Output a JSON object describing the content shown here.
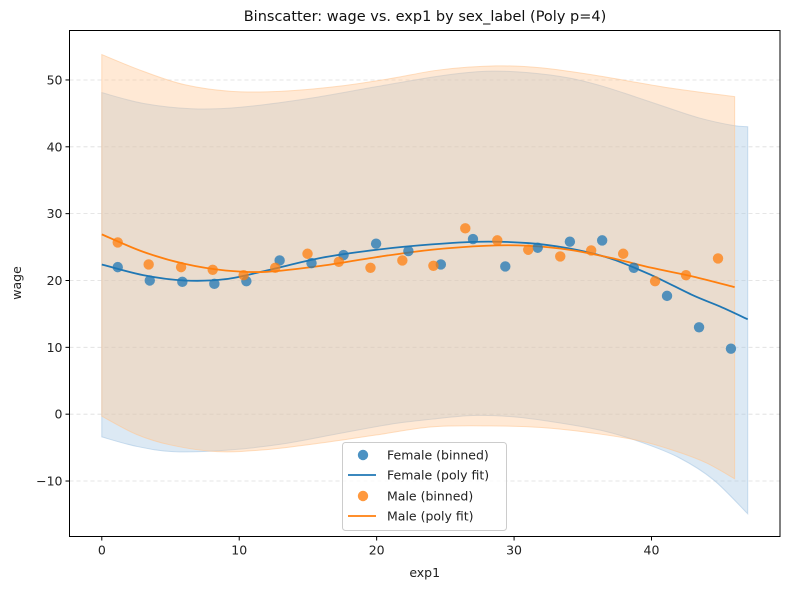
{
  "chart_data": {
    "type": "scatter",
    "title": "Binscatter: wage vs. exp1 by sex_label (Poly p=4)",
    "xlabel": "exp1",
    "ylabel": "wage",
    "xlim": [
      -2.35,
      49.35
    ],
    "ylim": [
      -18.3,
      57.4
    ],
    "xticks": [
      0,
      10,
      20,
      30,
      40
    ],
    "yticks": [
      -10,
      0,
      10,
      20,
      30,
      40,
      50
    ],
    "xtick_labels": [
      "0",
      "10",
      "20",
      "30",
      "40"
    ],
    "ytick_labels": [
      "−10",
      "0",
      "10",
      "20",
      "30",
      "40",
      "50"
    ],
    "grid": "y-dashed",
    "legend_position": "bottom-center",
    "legend": [
      {
        "label": "Female (binned)",
        "kind": "marker",
        "series": "Female"
      },
      {
        "label": "Female (poly fit)",
        "kind": "line",
        "series": "Female"
      },
      {
        "label": "Male (binned)",
        "kind": "marker",
        "series": "Male"
      },
      {
        "label": "Male (poly fit)",
        "kind": "line",
        "series": "Male"
      }
    ],
    "series": [
      {
        "name": "Female",
        "color": "#1f77b4",
        "band_color": "#a8c8e4",
        "binned": {
          "x": [
            1.16,
            3.49,
            5.86,
            8.19,
            10.52,
            12.94,
            15.26,
            17.59,
            19.96,
            22.31,
            24.67,
            27.01,
            29.36,
            31.72,
            34.06,
            36.41,
            38.71,
            41.13,
            43.46,
            45.78
          ],
          "y": [
            22.0,
            20.0,
            19.8,
            19.5,
            19.9,
            23.0,
            22.6,
            23.8,
            25.5,
            24.4,
            22.4,
            26.2,
            22.1,
            24.9,
            25.8,
            26.0,
            21.9,
            17.7,
            13.0,
            9.8
          ]
        },
        "fit": {
          "x": [
            0,
            3,
            6,
            9,
            12,
            16,
            20,
            24,
            27.5,
            31,
            34,
            37,
            40,
            43,
            45,
            47
          ],
          "y": [
            22.4,
            20.8,
            20.0,
            20.2,
            21.5,
            23.4,
            24.6,
            25.4,
            25.8,
            25.6,
            24.8,
            23.3,
            20.8,
            17.8,
            16.1,
            14.2
          ]
        },
        "ci_upper": {
          "x": [
            0,
            3,
            6.5,
            10,
            15,
            20,
            24.6,
            28,
            31,
            34,
            36.2,
            38.5,
            41.1,
            43.5,
            45.9,
            47
          ],
          "y": [
            48.1,
            46.5,
            45.7,
            45.9,
            47.2,
            49.0,
            50.6,
            51.3,
            51.1,
            50.3,
            49.2,
            47.7,
            45.9,
            44.3,
            43.2,
            43.0
          ]
        },
        "ci_lower": {
          "x": [
            0,
            2.5,
            5.2,
            9,
            13,
            17,
            21,
            24,
            27,
            30,
            33,
            36.5,
            39.4,
            42,
            44.5,
            47
          ],
          "y": [
            -3.4,
            -4.8,
            -5.6,
            -5.4,
            -4.5,
            -3.0,
            -1.5,
            -0.75,
            -0.2,
            -0.4,
            -1.2,
            -2.5,
            -4.3,
            -6.5,
            -9.8,
            -14.9
          ]
        }
      },
      {
        "name": "Male",
        "color": "#ff7f0e",
        "band_color": "#ffc896",
        "binned": {
          "x": [
            1.16,
            3.41,
            5.77,
            8.07,
            10.32,
            12.62,
            14.97,
            17.25,
            19.55,
            21.87,
            24.13,
            26.45,
            28.78,
            31.03,
            33.36,
            35.61,
            37.94,
            40.26,
            42.51,
            44.84
          ],
          "y": [
            25.7,
            22.4,
            22.0,
            21.6,
            20.8,
            21.9,
            24.0,
            22.8,
            21.9,
            23.0,
            22.2,
            27.8,
            26.0,
            24.6,
            23.6,
            24.5,
            24.0,
            19.9,
            20.8,
            23.3
          ]
        },
        "fit": {
          "x": [
            0,
            3,
            6,
            9,
            12,
            16,
            20,
            24,
            28,
            31,
            34,
            37,
            40,
            43,
            46.05
          ],
          "y": [
            26.9,
            24.3,
            22.5,
            21.5,
            21.3,
            22.2,
            23.5,
            24.6,
            25.2,
            25.2,
            24.6,
            23.4,
            21.9,
            20.6,
            19.0
          ]
        },
        "ci_upper": {
          "x": [
            0,
            3,
            6,
            9.4,
            13,
            17,
            21,
            24.6,
            28.7,
            32,
            36.2,
            41,
            46.05
          ],
          "y": [
            53.8,
            51.3,
            49.3,
            48.3,
            48.3,
            49.0,
            50.2,
            51.5,
            52.1,
            51.8,
            50.6,
            48.9,
            47.5
          ]
        },
        "ci_lower": {
          "x": [
            0,
            2.5,
            5,
            8.4,
            12,
            16,
            20,
            24,
            28.2,
            32,
            36,
            39.4,
            42,
            44,
            46.05
          ],
          "y": [
            -0.3,
            -3.0,
            -4.6,
            -5.6,
            -5.3,
            -4.3,
            -3.1,
            -1.9,
            -1.75,
            -2.0,
            -2.9,
            -4.1,
            -5.7,
            -7.3,
            -9.66
          ]
        }
      }
    ]
  }
}
